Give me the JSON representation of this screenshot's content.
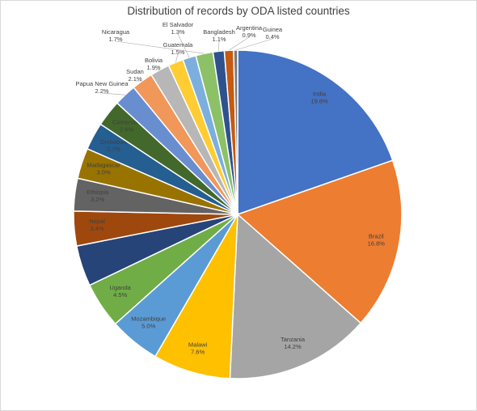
{
  "chart_data": {
    "type": "pie",
    "title": "Distribution of records by ODA listed countries",
    "slices": [
      {
        "label": "India",
        "value": 19.6,
        "text": "19.6%",
        "color": "#4472c4"
      },
      {
        "label": "Brazil",
        "value": 16.8,
        "text": "16.8%",
        "color": "#ed7d31"
      },
      {
        "label": "Tanzania",
        "value": 14.2,
        "text": "14.2%",
        "color": "#a5a5a5"
      },
      {
        "label": "Malawi",
        "value": 7.6,
        "text": "7.6%",
        "color": "#ffc000"
      },
      {
        "label": "Mozambique",
        "value": 5.0,
        "text": "5.0%",
        "color": "#5b9bd5"
      },
      {
        "label": "Uganda",
        "value": 4.5,
        "text": "4.5%",
        "color": "#70ad47"
      },
      {
        "label": "",
        "value": 4.0,
        "text": "",
        "color": "#264478"
      },
      {
        "label": "Nepal",
        "value": 3.4,
        "text": "3.4%",
        "color": "#9e480e"
      },
      {
        "label": "Ethiopia",
        "value": 3.2,
        "text": "3.2%",
        "color": "#636363"
      },
      {
        "label": "Madagascar",
        "value": 3.0,
        "text": "3.0%",
        "color": "#997300"
      },
      {
        "label": "Zimbabwe",
        "value": 2.7,
        "text": "2.7%",
        "color": "#255e91"
      },
      {
        "label": "Cameroon",
        "value": 2.6,
        "text": "2.6%",
        "color": "#43682b"
      },
      {
        "label": "Papua New Guinea",
        "value": 2.2,
        "text": "2.2%",
        "color": "#698ed0"
      },
      {
        "label": "Sudan",
        "value": 2.1,
        "text": "2.1%",
        "color": "#f1975a"
      },
      {
        "label": "Bolivia",
        "value": 1.9,
        "text": "1.9%",
        "color": "#b7b7b7"
      },
      {
        "label": "Guatemala",
        "value": 1.5,
        "text": "1.5%",
        "color": "#ffcd33"
      },
      {
        "label": "El Salvador",
        "value": 1.3,
        "text": "1.3%",
        "color": "#7cafdd"
      },
      {
        "label": "Nicaragua",
        "value": 1.7,
        "text": "1.7%",
        "color": "#8cc168"
      },
      {
        "label": "Bangladesh",
        "value": 1.1,
        "text": "1.1%",
        "color": "#2f528f"
      },
      {
        "label": "Argentina",
        "value": 0.9,
        "text": "0.9%",
        "color": "#c55a11"
      },
      {
        "label": "Guinea",
        "value": 0.4,
        "text": "0.4%",
        "color": "#7b7b7b"
      }
    ]
  }
}
